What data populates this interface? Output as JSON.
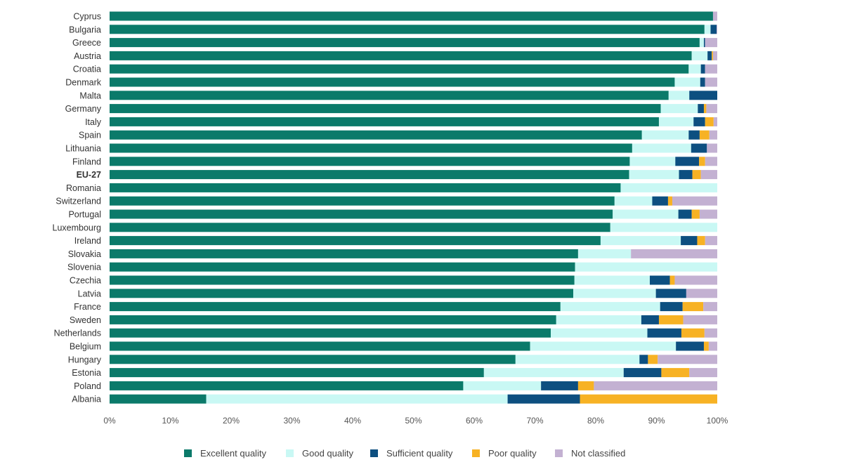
{
  "chart_data": {
    "type": "bar",
    "orientation": "horizontal",
    "stacked": true,
    "categories": [
      "Cyprus",
      "Bulgaria",
      "Greece",
      "Austria",
      "Croatia",
      "Denmark",
      "Malta",
      "Germany",
      "Italy",
      "Spain",
      "Lithuania",
      "Finland",
      "EU-27",
      "Romania",
      "Switzerland",
      "Portugal",
      "Luxembourg",
      "Ireland",
      "Slovakia",
      "Slovenia",
      "Czechia",
      "Latvia",
      "France",
      "Sweden",
      "Netherlands",
      "Belgium",
      "Hungary",
      "Estonia",
      "Poland",
      "Albania"
    ],
    "highlight_category": "EU-27",
    "series": [
      {
        "name": "Excellent quality",
        "color": "#0b7a6a",
        "values": [
          99.3,
          97.9,
          97.1,
          95.8,
          95.3,
          93.0,
          92.0,
          90.7,
          90.4,
          87.6,
          86.0,
          85.6,
          85.5,
          84.1,
          83.1,
          82.8,
          82.4,
          80.8,
          77.1,
          76.6,
          76.5,
          76.3,
          74.2,
          73.5,
          72.6,
          69.2,
          66.8,
          61.6,
          58.2,
          15.9
        ],
        "values_display": [
          "99.3%",
          "97.9%",
          "97.1%",
          "95.8%",
          "95.3%",
          "93.0%",
          "92.0%",
          "90.7%",
          "90.4%",
          "87.6%",
          "86.0%",
          "85.6%",
          "85.5%",
          "84.1%",
          "83.1%",
          "82.8%",
          "82.4%",
          "80.8%",
          "77.1%",
          "76.6%",
          "76.5%",
          "76.3%",
          "74.2%",
          "73.5%",
          "72.6%",
          "69.2%",
          "66.8%",
          "61.6%",
          "58.2%",
          "15.9%"
        ]
      },
      {
        "name": "Good quality",
        "color": "#c9f8f4",
        "values": [
          0,
          1.0,
          0.7,
          2.6,
          2.0,
          4.2,
          3.4,
          6.1,
          5.7,
          7.7,
          9.7,
          7.5,
          8.2,
          15.9,
          6.2,
          10.8,
          17.6,
          13.2,
          8.7,
          23.4,
          12.4,
          13.6,
          16.4,
          14.0,
          15.9,
          24.0,
          20.4,
          23.0,
          12.8,
          49.6
        ],
        "values_display": [
          "0%",
          "1.0%",
          "0.7%",
          "2.6%",
          "2.0%",
          "4.2%",
          "3.4%",
          "6.1%",
          "5.7%",
          "7.7%",
          "9.7%",
          "7.5%",
          "8.2%",
          "15.9%",
          "6.2%",
          "10.8%",
          "17.6%",
          "13.2%",
          "8.7%",
          "23.4%",
          "12.4%",
          "13.6%",
          "16.4%",
          "14.0%",
          "15.9%",
          "24.0%",
          "20.4%",
          "23.0%",
          "12.8%",
          "49.6%"
        ]
      },
      {
        "name": "Sufficient quality",
        "color": "#0d4f80",
        "values": [
          0,
          1.0,
          0.2,
          0.7,
          0.7,
          0.8,
          4.6,
          1.0,
          1.9,
          1.8,
          2.6,
          3.9,
          2.2,
          0,
          2.6,
          2.2,
          0,
          2.7,
          0,
          0,
          3.3,
          5.0,
          3.7,
          2.9,
          5.6,
          4.6,
          1.4,
          6.2,
          6.1,
          11.9
        ],
        "values_display": [
          "0%",
          "1.0%",
          "0.2%",
          "0.7%",
          "0.7%",
          "0.8%",
          "4.6%",
          "1.0%",
          "1.9%",
          "1.8%",
          "2.6%",
          "3.9%",
          "2.2%",
          "0%",
          "2.6%",
          "2.2%",
          "0%",
          "2.7%",
          "0%",
          "0%",
          "3.3%",
          "5.0%",
          "3.7%",
          "2.9%",
          "5.6%",
          "4.6%",
          "1.4%",
          "6.2%",
          "6.1%",
          "11.9%"
        ]
      },
      {
        "name": "Poor quality",
        "color": "#f7b224",
        "values": [
          0,
          0,
          0,
          0.2,
          0,
          0,
          0,
          0.4,
          1.4,
          1.6,
          0,
          1.0,
          1.4,
          0,
          0.7,
          1.3,
          0,
          1.3,
          0,
          0,
          0.8,
          0,
          3.4,
          4.0,
          3.8,
          0.8,
          1.6,
          4.6,
          2.6,
          22.6
        ],
        "values_display": [
          "0%",
          "0%",
          "0%",
          "0.2%",
          "0%",
          "0%",
          "0%",
          "0.4%",
          "1.4%",
          "1.6%",
          "0%",
          "1.0%",
          "1.4%",
          "0%",
          "0.7%",
          "1.3%",
          "0%",
          "1.3%",
          "0%",
          "0%",
          "0.8%",
          "0%",
          "3.4%",
          "4.0%",
          "3.8%",
          "0.8%",
          "1.6%",
          "4.6%",
          "2.6%",
          "22.6%"
        ]
      },
      {
        "name": "Not classified",
        "color": "#c3b1d2",
        "values": [
          0.7,
          0.1,
          2.0,
          0.7,
          2.0,
          2.0,
          0,
          1.8,
          0.6,
          1.3,
          1.7,
          2.0,
          2.7,
          0,
          7.4,
          2.9,
          0,
          2.0,
          14.2,
          0,
          7.0,
          5.1,
          2.3,
          5.6,
          2.1,
          1.4,
          9.8,
          4.6,
          20.3,
          0
        ],
        "values_display": [
          "0.7%",
          "0.1%",
          "2.0%",
          "0.7%",
          "2.0%",
          "2.0%",
          "0%",
          "1.8%",
          "0.6%",
          "1.3%",
          "1.7%",
          "2.0%",
          "2.7%",
          "0%",
          "7.4%",
          "2.9%",
          "0%",
          "2.0%",
          "14.2%",
          "0%",
          "7.0%",
          "5.1%",
          "2.3%",
          "5.6%",
          "2.1%",
          "1.4%",
          "9.8%",
          "4.6%",
          "20.3%",
          "0%"
        ]
      }
    ],
    "xlim": [
      0,
      100
    ],
    "x_ticks": [
      "0%",
      "10%",
      "20%",
      "30%",
      "40%",
      "50%",
      "60%",
      "70%",
      "80%",
      "90%",
      "100%"
    ],
    "xlabel": "",
    "ylabel": "",
    "title": "",
    "legend_position": "bottom-center",
    "grid": false
  }
}
